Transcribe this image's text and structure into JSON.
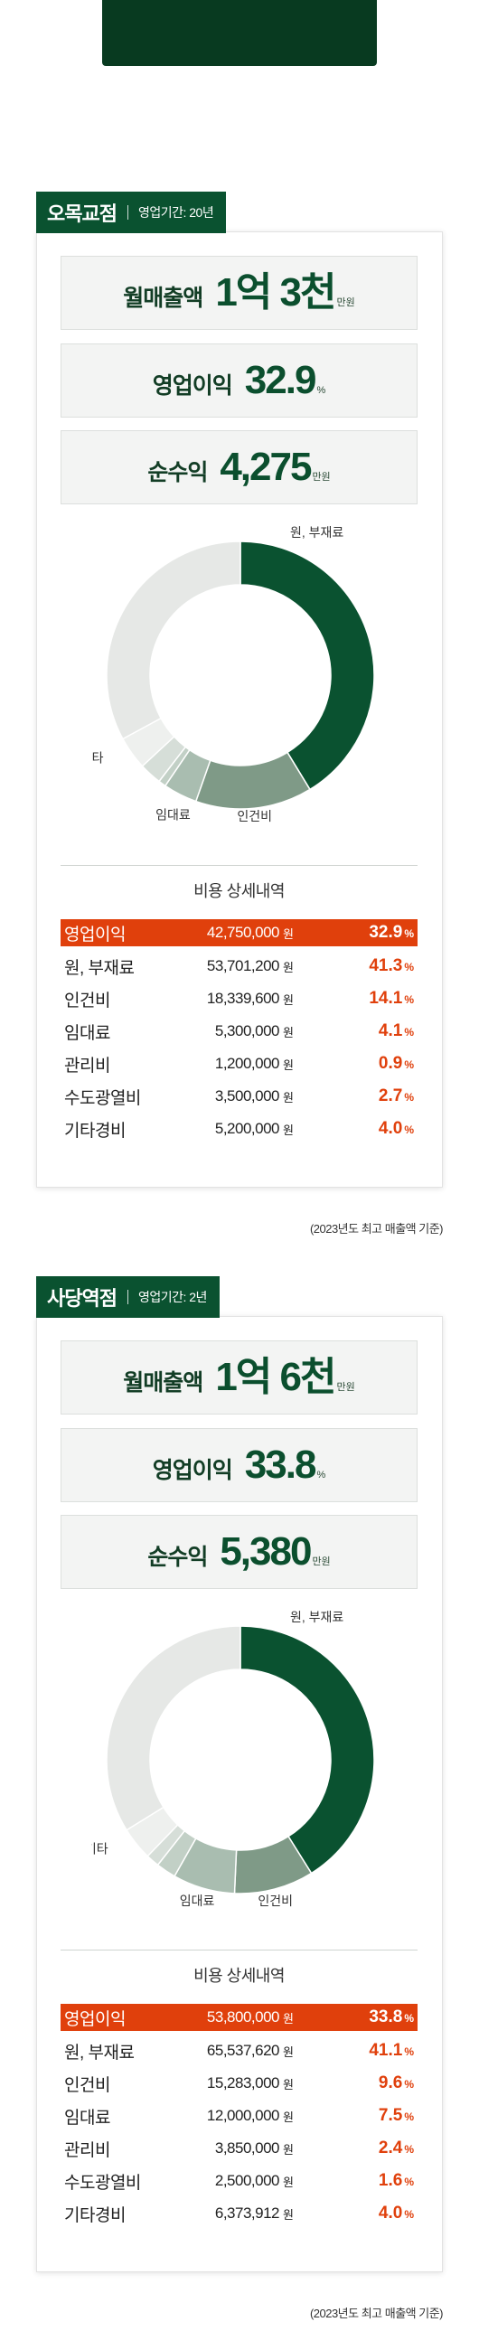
{
  "colors": {
    "dark_green": "#0a5230",
    "mid_green": "#7f9a87",
    "light_green": "#a9bdb0",
    "pale": "#e6e8e6",
    "accent_red": "#e0400c"
  },
  "stores": [
    {
      "name": "오목교점",
      "period": "영업기간: 20년",
      "stats": [
        {
          "label": "월매출액",
          "value": "1억 3천",
          "unit": "만원"
        },
        {
          "label": "영업이익",
          "value": "32.9",
          "unit": "%"
        },
        {
          "label": "순수익",
          "value": "4,275",
          "unit": "만원"
        }
      ],
      "chart_data": {
        "type": "pie",
        "categories": [
          "원, 부재료",
          "인건비",
          "임대료",
          "관리비",
          "수도광열비",
          "기타경비",
          "영업이익"
        ],
        "values": [
          41.3,
          14.1,
          4.1,
          0.9,
          2.7,
          4.0,
          32.9
        ],
        "labels_shown": [
          "원, 부재료",
          "인건비",
          "임대료",
          "기타"
        ]
      },
      "cost_title": "비용 상세내역",
      "rows": [
        {
          "name": "영업이익",
          "amount": "42,750,000",
          "won": "원",
          "pct": "32.9",
          "unit": "%",
          "highlight": true
        },
        {
          "name": "원, 부재료",
          "amount": "53,701,200",
          "won": "원",
          "pct": "41.3",
          "unit": "%"
        },
        {
          "name": "인건비",
          "amount": "18,339,600",
          "won": "원",
          "pct": "14.1",
          "unit": "%"
        },
        {
          "name": "임대료",
          "amount": "5,300,000",
          "won": "원",
          "pct": "4.1",
          "unit": "%"
        },
        {
          "name": "관리비",
          "amount": "1,200,000",
          "won": "원",
          "pct": "0.9",
          "unit": "%"
        },
        {
          "name": "수도광열비",
          "amount": "3,500,000",
          "won": "원",
          "pct": "2.7",
          "unit": "%"
        },
        {
          "name": "기타경비",
          "amount": "5,200,000",
          "won": "원",
          "pct": "4.0",
          "unit": "%"
        }
      ],
      "footnote": "(2023년도 최고 매출액 기준)"
    },
    {
      "name": "사당역점",
      "period": "영업기간: 2년",
      "stats": [
        {
          "label": "월매출액",
          "value": "1억 6천",
          "unit": "만원"
        },
        {
          "label": "영업이익",
          "value": "33.8",
          "unit": "%"
        },
        {
          "label": "순수익",
          "value": "5,380",
          "unit": "만원"
        }
      ],
      "chart_data": {
        "type": "pie",
        "categories": [
          "원, 부재료",
          "인건비",
          "임대료",
          "관리비",
          "수도광열비",
          "기타경비",
          "영업이익"
        ],
        "values": [
          41.1,
          9.6,
          7.5,
          2.4,
          1.6,
          4.0,
          33.8
        ],
        "labels_shown": [
          "원, 부재료",
          "인건비",
          "임대료",
          "기타"
        ]
      },
      "cost_title": "비용 상세내역",
      "rows": [
        {
          "name": "영업이익",
          "amount": "53,800,000",
          "won": "원",
          "pct": "33.8",
          "unit": "%",
          "highlight": true
        },
        {
          "name": "원, 부재료",
          "amount": "65,537,620",
          "won": "원",
          "pct": "41.1",
          "unit": "%"
        },
        {
          "name": "인건비",
          "amount": "15,283,000",
          "won": "원",
          "pct": "9.6",
          "unit": "%"
        },
        {
          "name": "임대료",
          "amount": "12,000,000",
          "won": "원",
          "pct": "7.5",
          "unit": "%"
        },
        {
          "name": "관리비",
          "amount": "3,850,000",
          "won": "원",
          "pct": "2.4",
          "unit": "%"
        },
        {
          "name": "수도광열비",
          "amount": "2,500,000",
          "won": "원",
          "pct": "1.6",
          "unit": "%"
        },
        {
          "name": "기타경비",
          "amount": "6,373,912",
          "won": "원",
          "pct": "4.0",
          "unit": "%"
        }
      ],
      "footnote": "(2023년도 최고 매출액 기준)"
    }
  ]
}
